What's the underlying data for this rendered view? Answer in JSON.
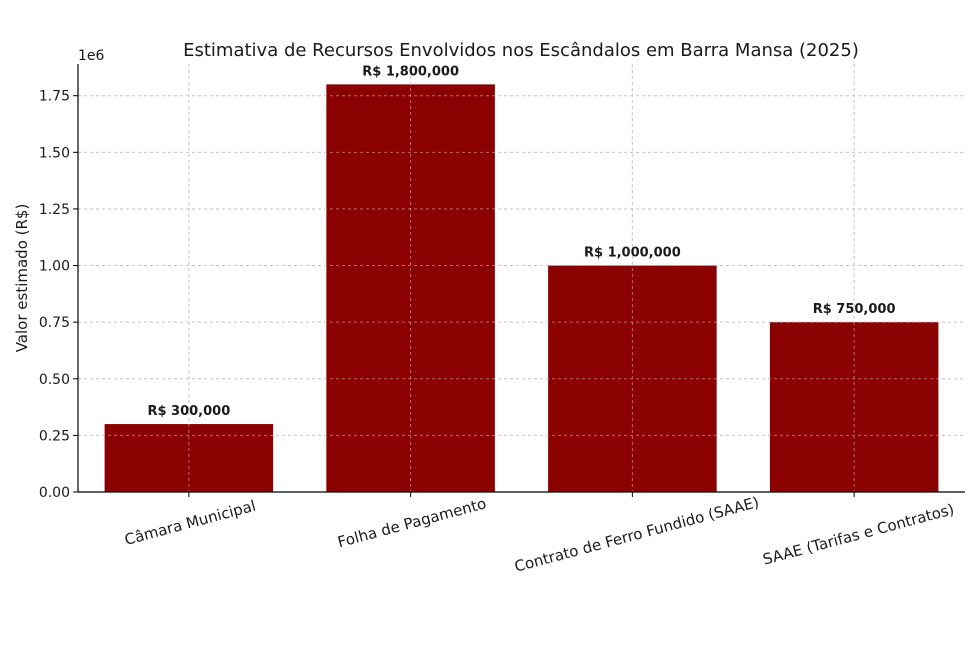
{
  "chart_data": {
    "type": "bar",
    "title": "Estimativa de Recursos Envolvidos nos Escândalos em Barra Mansa (2025)",
    "xlabel": "",
    "ylabel": "Valor estimado (R$)",
    "offset_label": "1e6",
    "categories": [
      "Câmara Municipal",
      "Folha de Pagamento",
      "Contrato de Ferro Fundido (SAAE)",
      "SAAE (Tarifas e Contratos)"
    ],
    "values": [
      300000,
      1800000,
      1000000,
      750000
    ],
    "data_labels": [
      "R$ 300,000",
      "R$ 1,800,000",
      "R$ 1,000,000",
      "R$ 750,000"
    ],
    "ylim": [
      0,
      1890000
    ],
    "yticks": [
      0,
      250000,
      500000,
      750000,
      1000000,
      1250000,
      1500000,
      1750000
    ],
    "ytick_labels": [
      "0.00",
      "0.25",
      "0.50",
      "0.75",
      "1.00",
      "1.25",
      "1.50",
      "1.75"
    ],
    "grid": true,
    "bar_color": "#8b0000"
  }
}
